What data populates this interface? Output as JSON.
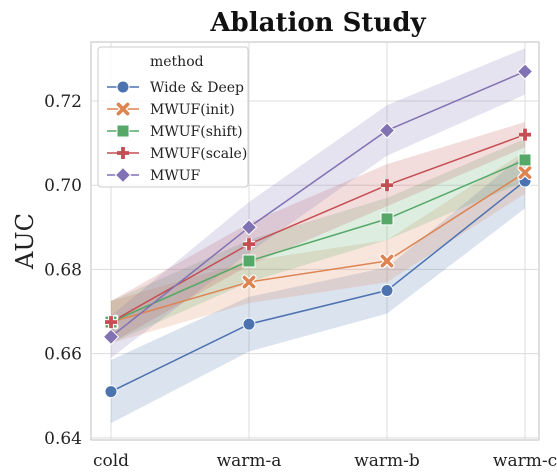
{
  "chart_data": {
    "type": "line",
    "title": "Ablation Study",
    "xlabel": "",
    "ylabel": "AUC",
    "categories": [
      "cold",
      "warm-a",
      "warm-b",
      "warm-c"
    ],
    "ylim": [
      0.6395,
      0.734
    ],
    "yticks": [
      0.64,
      0.66,
      0.68,
      0.7,
      0.72
    ],
    "ytick_labels": [
      "0.64",
      "0.66",
      "0.68",
      "0.70",
      "0.72"
    ],
    "grid": true,
    "legend": {
      "title": "method",
      "placement": "top-left"
    },
    "series": [
      {
        "name": "Wide & Deep",
        "color": "#4c72b0",
        "marker": "circle",
        "values": [
          0.651,
          0.667,
          0.675,
          0.701
        ],
        "lower": [
          0.6435,
          0.6605,
          0.6695,
          0.6945
        ],
        "upper": [
          0.6585,
          0.6735,
          0.6805,
          0.7075
        ]
      },
      {
        "name": "MWUF(init)",
        "color": "#dd8452",
        "marker": "x",
        "values": [
          0.6675,
          0.677,
          0.682,
          0.703
        ],
        "lower": [
          0.6625,
          0.672,
          0.677,
          0.698
        ],
        "upper": [
          0.6725,
          0.682,
          0.687,
          0.708
        ]
      },
      {
        "name": "MWUF(shift)",
        "color": "#55a868",
        "marker": "square",
        "values": [
          0.6675,
          0.682,
          0.692,
          0.706
        ],
        "lower": [
          0.6625,
          0.677,
          0.687,
          0.701
        ],
        "upper": [
          0.6725,
          0.687,
          0.697,
          0.711
        ]
      },
      {
        "name": "MWUF(scale)",
        "color": "#c44e52",
        "marker": "plus",
        "values": [
          0.6675,
          0.686,
          0.7,
          0.712
        ],
        "lower": [
          0.6625,
          0.681,
          0.695,
          0.709
        ],
        "upper": [
          0.6725,
          0.691,
          0.705,
          0.715
        ]
      },
      {
        "name": "MWUF",
        "color": "#8172b3",
        "marker": "diamond",
        "values": [
          0.664,
          0.69,
          0.713,
          0.727
        ],
        "lower": [
          0.659,
          0.684,
          0.707,
          0.7215
        ],
        "upper": [
          0.669,
          0.696,
          0.719,
          0.7325
        ]
      }
    ]
  }
}
